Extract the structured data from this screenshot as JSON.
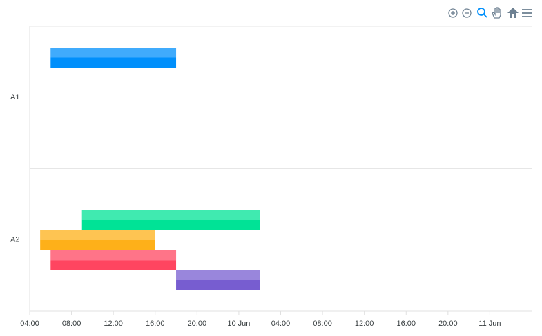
{
  "chart_data": {
    "type": "rangeBar",
    "categories": [
      "A1",
      "A2"
    ],
    "bars": [
      {
        "category": 0,
        "start": 6,
        "end": 18,
        "color": "#008FFB"
      },
      {
        "category": 1,
        "start": 9,
        "end": 26,
        "color": "#00E396"
      },
      {
        "category": 1,
        "start": 5,
        "end": 16,
        "color": "#FEB019"
      },
      {
        "category": 1,
        "start": 6,
        "end": 18,
        "color": "#FF4560"
      },
      {
        "category": 1,
        "start": 18,
        "end": 26,
        "color": "#775DD0"
      }
    ],
    "xlim": [
      4,
      52
    ],
    "xticks": [
      {
        "value": 4,
        "label": "04:00"
      },
      {
        "value": 8,
        "label": "08:00"
      },
      {
        "value": 12,
        "label": "12:00"
      },
      {
        "value": 16,
        "label": "16:00"
      },
      {
        "value": 20,
        "label": "20:00"
      },
      {
        "value": 24,
        "label": "10 Jun"
      },
      {
        "value": 28,
        "label": "04:00"
      },
      {
        "value": 32,
        "label": "08:00"
      },
      {
        "value": 36,
        "label": "12:00"
      },
      {
        "value": 40,
        "label": "16:00"
      },
      {
        "value": 44,
        "label": "20:00"
      },
      {
        "value": 48,
        "label": "11 Jun"
      }
    ]
  }
}
